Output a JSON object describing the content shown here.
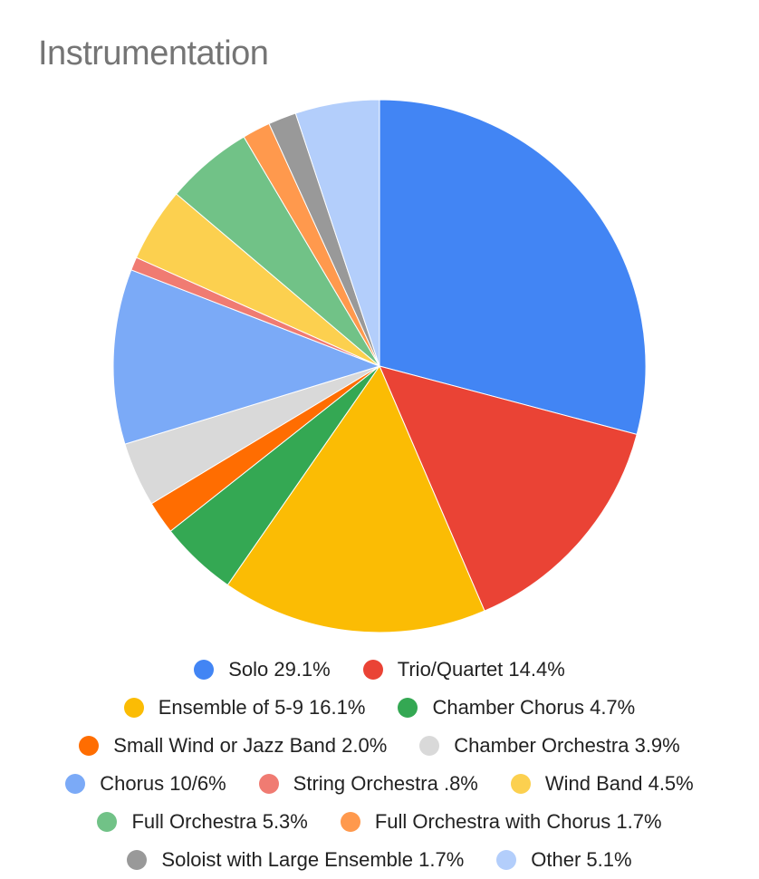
{
  "chart_data": {
    "type": "pie",
    "title": "Instrumentation",
    "legend_position": "bottom",
    "start_angle_deg": 0,
    "direction": "clockwise",
    "slices": [
      {
        "label": "Solo 29.1%",
        "value": 29.1,
        "color": "#4285F4"
      },
      {
        "label": "Trio/Quartet 14.4%",
        "value": 14.4,
        "color": "#EA4335"
      },
      {
        "label": "Ensemble of 5-9 16.1%",
        "value": 16.1,
        "color": "#FBBC04"
      },
      {
        "label": "Chamber Chorus 4.7%",
        "value": 4.7,
        "color": "#34A853"
      },
      {
        "label": "Small Wind or Jazz Band 2.0%",
        "value": 2.0,
        "color": "#FF6D01"
      },
      {
        "label": "Chamber Orchestra 3.9%",
        "value": 3.9,
        "color": "#D9D9D9"
      },
      {
        "label": "Chorus 10/6%",
        "value": 10.6,
        "color": "#7BAAF7"
      },
      {
        "label": "String Orchestra .8%",
        "value": 0.8,
        "color": "#F07B72"
      },
      {
        "label": "Wind Band 4.5%",
        "value": 4.5,
        "color": "#FCD04F"
      },
      {
        "label": "Full Orchestra 5.3%",
        "value": 5.3,
        "color": "#71C287"
      },
      {
        "label": "Full Orchestra with Chorus 1.7%",
        "value": 1.7,
        "color": "#FF994D"
      },
      {
        "label": "Soloist with Large Ensemble 1.7%",
        "value": 1.7,
        "color": "#999999"
      },
      {
        "label": "Other 5.1%",
        "value": 5.1,
        "color": "#B3CEFB"
      }
    ]
  }
}
